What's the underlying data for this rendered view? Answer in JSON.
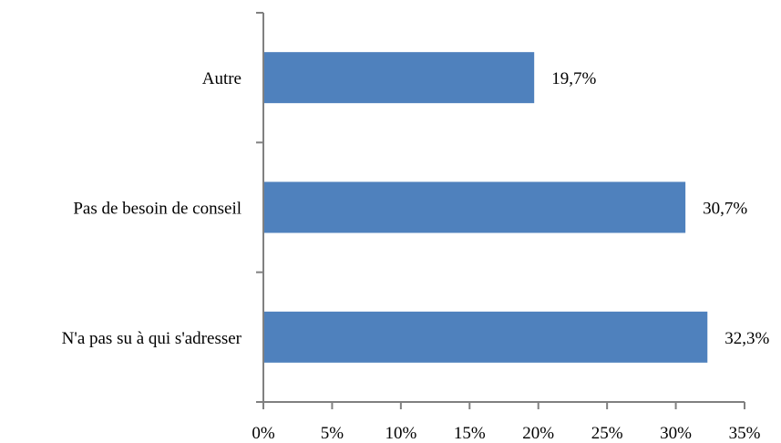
{
  "chart_data": {
    "type": "bar",
    "orientation": "horizontal",
    "categories": [
      "Autre",
      "Pas de besoin de conseil",
      "N'a pas su à qui s'adresser"
    ],
    "values": [
      19.7,
      30.7,
      32.3
    ],
    "data_labels": [
      "19,7%",
      "30,7%",
      "32,3%"
    ],
    "x_ticks": [
      0,
      5,
      10,
      15,
      20,
      25,
      30,
      35
    ],
    "x_tick_labels": [
      "0%",
      "5%",
      "10%",
      "15%",
      "20%",
      "25%",
      "30%",
      "35%"
    ],
    "xlim": [
      0,
      35
    ],
    "grid": false,
    "legend": "none",
    "bar_color": "#4F81BD",
    "axis_color": "#808080"
  }
}
